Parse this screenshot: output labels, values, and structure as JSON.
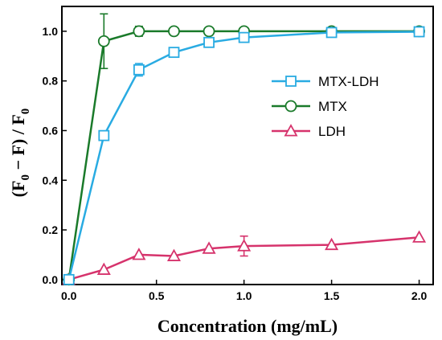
{
  "chart_data": {
    "type": "line",
    "xlabel": "Concentration (mg/mL)",
    "ylabel": "(F0 − F) / F0",
    "ylabel_parts": [
      "(F",
      "0",
      " − F) / F",
      "0"
    ],
    "xlim": [
      -0.04,
      2.08
    ],
    "ylim": [
      -0.02,
      1.1
    ],
    "xticks": [
      0.0,
      0.5,
      1.0,
      1.5,
      2.0
    ],
    "xtick_labels": [
      "0.0",
      "0.5",
      "1.0",
      "1.5",
      "2.0"
    ],
    "yticks": [
      0.0,
      0.2,
      0.4,
      0.6,
      0.8,
      1.0
    ],
    "ytick_labels": [
      "0.0",
      "0.2",
      "0.4",
      "0.6",
      "0.8",
      "1.0"
    ],
    "grid": false,
    "legend_position": "center-right",
    "series": [
      {
        "name": "MTX-LDH",
        "color": "#29abe2",
        "marker": "square",
        "x": [
          0.0,
          0.2,
          0.4,
          0.6,
          0.8,
          1.0,
          1.5,
          2.0
        ],
        "y": [
          0.0,
          0.58,
          0.845,
          0.915,
          0.955,
          0.975,
          0.995,
          0.998
        ],
        "error": [
          0.0,
          0.0,
          0.025,
          0.01,
          0.01,
          0.01,
          0.0,
          0.0
        ]
      },
      {
        "name": "MTX",
        "color": "#1a7a2a",
        "marker": "circle",
        "x": [
          0.0,
          0.2,
          0.4,
          0.6,
          0.8,
          1.0,
          1.5,
          2.0
        ],
        "y": [
          0.0,
          0.96,
          1.0,
          1.0,
          1.0,
          1.0,
          1.0,
          1.0
        ],
        "error": [
          0.0,
          0.11,
          0.02,
          0.0,
          0.0,
          0.0,
          0.0,
          0.0
        ]
      },
      {
        "name": "LDH",
        "color": "#d6336c",
        "marker": "triangle",
        "x": [
          0.0,
          0.2,
          0.4,
          0.6,
          0.8,
          1.0,
          1.5,
          2.0
        ],
        "y": [
          0.0,
          0.04,
          0.1,
          0.095,
          0.125,
          0.135,
          0.14,
          0.17
        ],
        "error": [
          0.0,
          0.0,
          0.0,
          0.0,
          0.0,
          0.04,
          0.0,
          0.0
        ]
      }
    ]
  }
}
